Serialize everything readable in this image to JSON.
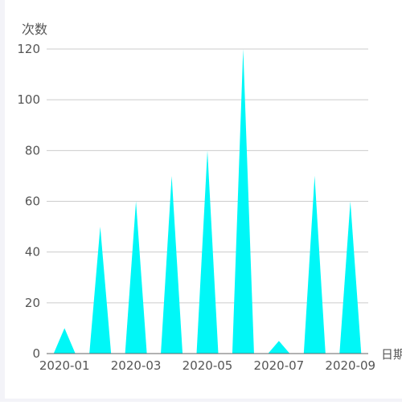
{
  "chart_data": {
    "type": "bar",
    "bar_shape": "triangle",
    "categories": [
      "2020-01",
      "2020-02",
      "2020-03",
      "2020-04",
      "2020-05",
      "2020-06",
      "2020-07",
      "2020-08",
      "2020-09"
    ],
    "x_tick_labels": [
      "2020-01",
      "2020-03",
      "2020-05",
      "2020-07",
      "2020-09"
    ],
    "values": [
      10,
      50,
      60,
      70,
      80,
      120,
      5,
      70,
      60
    ],
    "title": "",
    "xlabel": "日期",
    "ylabel": "次数",
    "ylim": [
      0,
      120
    ],
    "y_ticks": [
      0,
      20,
      40,
      60,
      80,
      100,
      120
    ],
    "grid": true,
    "legend": "none",
    "colors": {
      "bar": "#00f7f7",
      "grid": "#cccccc",
      "axis": "#666666",
      "text": "#555555"
    }
  }
}
